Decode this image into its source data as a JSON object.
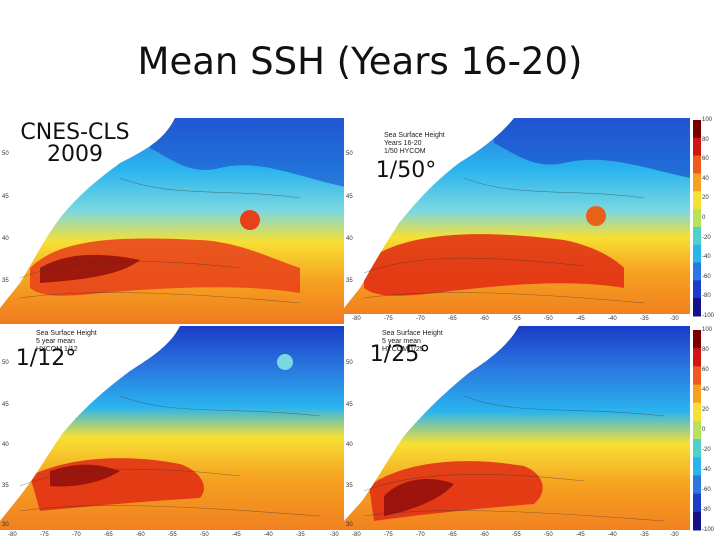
{
  "slide": {
    "title": "Mean SSH (Years 16-20)"
  },
  "panels": [
    {
      "id": "cnes",
      "label_lines": [
        "CNES-CLS",
        "2009"
      ],
      "caption_lines": [],
      "y_ticks": [
        "50",
        "45",
        "40",
        "35"
      ],
      "x_ticks": []
    },
    {
      "id": "hycom50",
      "label_lines": [
        "1/50°"
      ],
      "caption_lines": [
        "Sea Surface Height",
        "Years 16-20",
        "1/50 HYCOM"
      ],
      "y_ticks": [
        "50",
        "45",
        "40",
        "35"
      ],
      "x_ticks": [
        "-80",
        "-75",
        "-70",
        "-65",
        "-60",
        "-55",
        "-50",
        "-45",
        "-40",
        "-35",
        "-30"
      ]
    },
    {
      "id": "hycom12",
      "label_lines": [
        "1/12°"
      ],
      "caption_lines": [
        "Sea Surface Height",
        "5 year mean",
        "HYCOM 1/12"
      ],
      "y_ticks": [
        "50",
        "45",
        "40",
        "35",
        "30"
      ],
      "x_ticks": [
        "-80",
        "-75",
        "-70",
        "-65",
        "-60",
        "-55",
        "-50",
        "-45",
        "-40",
        "-35",
        "-30"
      ]
    },
    {
      "id": "hycom25",
      "label_lines": [
        "1/25°"
      ],
      "caption_lines": [
        "Sea Surface Height",
        "5 year mean",
        "HYCOM 1/25"
      ],
      "y_ticks": [
        "50",
        "45",
        "40",
        "35",
        "30"
      ],
      "x_ticks": [
        "-80",
        "-75",
        "-70",
        "-65",
        "-60",
        "-55",
        "-50",
        "-45",
        "-40",
        "-35",
        "-30"
      ]
    }
  ],
  "colorbar": {
    "ticks": [
      "100",
      "80",
      "60",
      "40",
      "20",
      "0",
      "-20",
      "-40",
      "-60",
      "-80",
      "-100"
    ],
    "colors": [
      "#7a0000",
      "#d21414",
      "#f05a1e",
      "#f6a020",
      "#f7e034",
      "#b8e25a",
      "#4fd0c8",
      "#2ab4ee",
      "#2a78e0",
      "#1a3cc8",
      "#18108a"
    ]
  }
}
